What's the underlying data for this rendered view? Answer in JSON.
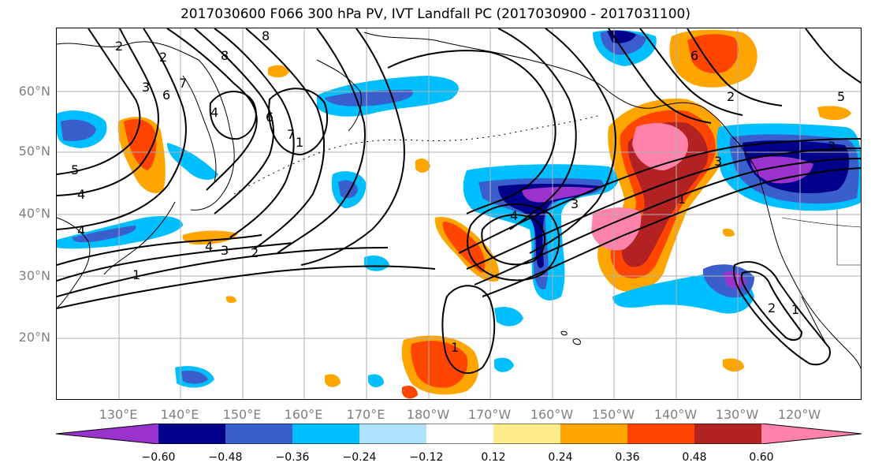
{
  "title": "2017030600 F066 300 hPa PV, IVT Landfall PC (2017030900 - 2017031100)",
  "lat_labels": [
    "60°N",
    "50°N",
    "40°N",
    "30°N",
    "20°N"
  ],
  "lon_labels": [
    "130°E",
    "140°E",
    "150°E",
    "160°E",
    "170°E",
    "180°W",
    "170°W",
    "160°W",
    "150°W",
    "140°W",
    "130°W",
    "120°W"
  ],
  "colorbar": {
    "colors": [
      "#9a32cd",
      "#00008b",
      "#3a5fcd",
      "#00bfff",
      "#b0e2ff",
      "#ffffff",
      "#ffec8b",
      "#ffa500",
      "#ff4500",
      "#b22222",
      "#ff82ab"
    ],
    "tick_labels": [
      "−0.60",
      "−0.48",
      "−0.36",
      "−0.24",
      "−0.12",
      "0.12",
      "0.24",
      "0.36",
      "0.48",
      "0.60"
    ]
  },
  "contour_labels": [
    "2",
    "2",
    "3",
    "6",
    "7",
    "8",
    "8",
    "4",
    "6",
    "7",
    "5",
    "4",
    "4",
    "4",
    "3",
    "2",
    "1",
    "4",
    "3",
    "3",
    "1",
    "3",
    "2",
    "1",
    "6",
    "5",
    "1",
    "2",
    "1"
  ],
  "map": {
    "extent_lon": [
      120,
      250
    ],
    "extent_lat": [
      10,
      70
    ],
    "field_positive": "IVT Landfall PC positive",
    "field_negative": "IVT Landfall PC negative"
  }
}
